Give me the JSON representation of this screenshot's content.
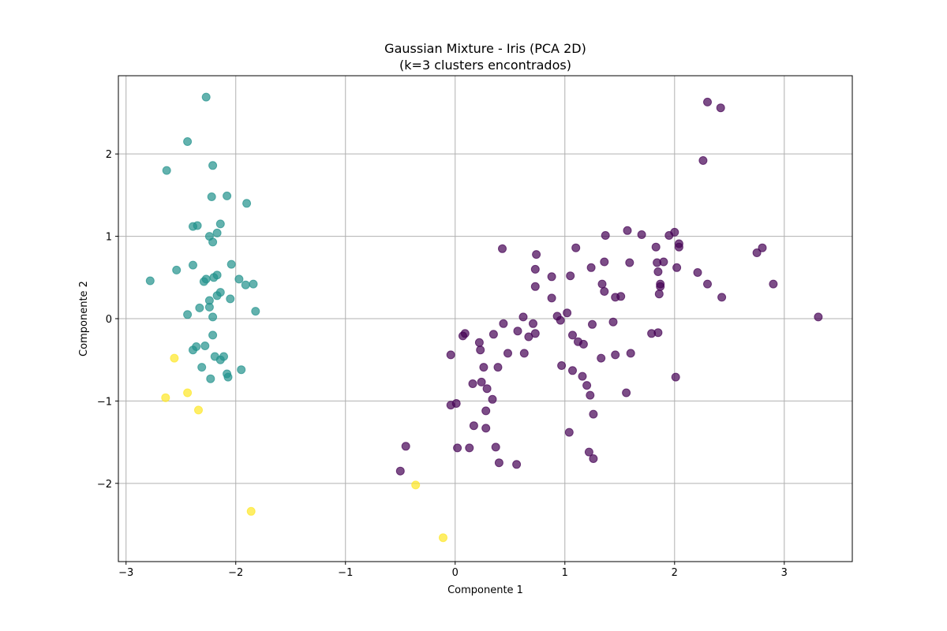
{
  "chart_data": {
    "type": "scatter",
    "title": "Gaussian Mixture - Iris (PCA 2D)",
    "subtitle": "(k=3 clusters encontrados)",
    "xlabel": "Componente 1",
    "ylabel": "Componente 2",
    "xlim": [
      -3.07,
      3.62
    ],
    "ylim": [
      -2.95,
      2.95
    ],
    "xticks": [
      -3,
      -2,
      -1,
      0,
      1,
      2,
      3
    ],
    "yticks": [
      -2,
      -1,
      0,
      1,
      2
    ],
    "xtick_labels": [
      "−3",
      "−2",
      "−1",
      "0",
      "1",
      "2",
      "3"
    ],
    "ytick_labels": [
      "−2",
      "−1",
      "0",
      "1",
      "2"
    ],
    "grid": true,
    "series": [
      {
        "color": "#440154",
        "points": [
          [
            2.3,
            2.63
          ],
          [
            2.42,
            2.56
          ],
          [
            2.26,
            1.92
          ],
          [
            1.57,
            1.07
          ],
          [
            2.0,
            1.05
          ],
          [
            1.7,
            1.02
          ],
          [
            1.95,
            1.01
          ],
          [
            1.37,
            1.01
          ],
          [
            2.04,
            0.91
          ],
          [
            2.04,
            0.87
          ],
          [
            1.83,
            0.87
          ],
          [
            2.8,
            0.86
          ],
          [
            2.75,
            0.8
          ],
          [
            1.1,
            0.86
          ],
          [
            0.43,
            0.85
          ],
          [
            0.74,
            0.78
          ],
          [
            1.84,
            0.68
          ],
          [
            1.9,
            0.69
          ],
          [
            1.36,
            0.69
          ],
          [
            1.59,
            0.68
          ],
          [
            2.02,
            0.62
          ],
          [
            1.24,
            0.62
          ],
          [
            0.73,
            0.6
          ],
          [
            1.85,
            0.57
          ],
          [
            2.21,
            0.56
          ],
          [
            0.88,
            0.51
          ],
          [
            1.05,
            0.52
          ],
          [
            1.87,
            0.42
          ],
          [
            1.87,
            0.39
          ],
          [
            2.3,
            0.42
          ],
          [
            2.9,
            0.42
          ],
          [
            1.34,
            0.42
          ],
          [
            0.73,
            0.39
          ],
          [
            1.36,
            0.33
          ],
          [
            1.86,
            0.3
          ],
          [
            0.88,
            0.25
          ],
          [
            1.46,
            0.26
          ],
          [
            1.51,
            0.27
          ],
          [
            2.43,
            0.26
          ],
          [
            1.02,
            0.07
          ],
          [
            0.93,
            0.03
          ],
          [
            0.96,
            -0.02
          ],
          [
            0.62,
            0.02
          ],
          [
            3.31,
            0.02
          ],
          [
            0.44,
            -0.06
          ],
          [
            0.71,
            -0.06
          ],
          [
            1.25,
            -0.07
          ],
          [
            1.44,
            -0.04
          ],
          [
            0.57,
            -0.15
          ],
          [
            0.73,
            -0.18
          ],
          [
            0.67,
            -0.22
          ],
          [
            1.07,
            -0.2
          ],
          [
            1.79,
            -0.18
          ],
          [
            1.85,
            -0.17
          ],
          [
            0.09,
            -0.18
          ],
          [
            0.07,
            -0.21
          ],
          [
            0.35,
            -0.19
          ],
          [
            1.12,
            -0.28
          ],
          [
            1.17,
            -0.31
          ],
          [
            0.22,
            -0.29
          ],
          [
            0.23,
            -0.38
          ],
          [
            0.48,
            -0.42
          ],
          [
            0.63,
            -0.42
          ],
          [
            1.46,
            -0.44
          ],
          [
            1.6,
            -0.42
          ],
          [
            -0.04,
            -0.44
          ],
          [
            1.33,
            -0.48
          ],
          [
            0.97,
            -0.57
          ],
          [
            0.39,
            -0.59
          ],
          [
            0.26,
            -0.59
          ],
          [
            1.07,
            -0.63
          ],
          [
            1.16,
            -0.7
          ],
          [
            2.01,
            -0.71
          ],
          [
            0.16,
            -0.79
          ],
          [
            0.24,
            -0.77
          ],
          [
            1.2,
            -0.81
          ],
          [
            0.29,
            -0.85
          ],
          [
            1.56,
            -0.9
          ],
          [
            1.23,
            -0.93
          ],
          [
            0.34,
            -0.98
          ],
          [
            -0.04,
            -1.05
          ],
          [
            0.01,
            -1.03
          ],
          [
            0.28,
            -1.12
          ],
          [
            1.26,
            -1.16
          ],
          [
            0.28,
            -1.33
          ],
          [
            0.17,
            -1.3
          ],
          [
            1.04,
            -1.38
          ],
          [
            -0.45,
            -1.55
          ],
          [
            0.02,
            -1.57
          ],
          [
            0.13,
            -1.57
          ],
          [
            0.37,
            -1.56
          ],
          [
            1.22,
            -1.62
          ],
          [
            1.26,
            -1.7
          ],
          [
            0.4,
            -1.75
          ],
          [
            0.56,
            -1.77
          ],
          [
            -0.5,
            -1.85
          ]
        ]
      },
      {
        "color": "#21918c",
        "points": [
          [
            -2.27,
            2.69
          ],
          [
            -2.44,
            2.15
          ],
          [
            -2.21,
            1.86
          ],
          [
            -2.63,
            1.8
          ],
          [
            -2.22,
            1.48
          ],
          [
            -2.08,
            1.49
          ],
          [
            -1.9,
            1.4
          ],
          [
            -2.35,
            1.13
          ],
          [
            -2.39,
            1.12
          ],
          [
            -2.14,
            1.15
          ],
          [
            -2.17,
            1.04
          ],
          [
            -2.24,
            1.0
          ],
          [
            -2.21,
            0.93
          ],
          [
            -2.04,
            0.66
          ],
          [
            -2.39,
            0.65
          ],
          [
            -2.54,
            0.59
          ],
          [
            -2.17,
            0.53
          ],
          [
            -2.2,
            0.5
          ],
          [
            -2.27,
            0.48
          ],
          [
            -2.29,
            0.45
          ],
          [
            -2.78,
            0.46
          ],
          [
            -1.97,
            0.48
          ],
          [
            -1.91,
            0.41
          ],
          [
            -1.84,
            0.42
          ],
          [
            -2.14,
            0.32
          ],
          [
            -2.17,
            0.28
          ],
          [
            -2.05,
            0.24
          ],
          [
            -2.24,
            0.22
          ],
          [
            -2.24,
            0.14
          ],
          [
            -2.33,
            0.13
          ],
          [
            -1.82,
            0.09
          ],
          [
            -2.44,
            0.05
          ],
          [
            -2.21,
            0.02
          ],
          [
            -2.21,
            -0.2
          ],
          [
            -2.28,
            -0.33
          ],
          [
            -2.36,
            -0.34
          ],
          [
            -2.39,
            -0.38
          ],
          [
            -2.19,
            -0.46
          ],
          [
            -2.11,
            -0.46
          ],
          [
            -2.14,
            -0.5
          ],
          [
            -2.31,
            -0.59
          ],
          [
            -1.95,
            -0.62
          ],
          [
            -2.08,
            -0.67
          ],
          [
            -2.07,
            -0.71
          ],
          [
            -2.23,
            -0.73
          ]
        ]
      },
      {
        "color": "#fde725",
        "points": [
          [
            -2.56,
            -0.48
          ],
          [
            -2.44,
            -0.9
          ],
          [
            -2.64,
            -0.96
          ],
          [
            -2.34,
            -1.11
          ],
          [
            -0.36,
            -2.02
          ],
          [
            -1.86,
            -2.34
          ],
          [
            -0.11,
            -2.66
          ]
        ]
      }
    ]
  }
}
